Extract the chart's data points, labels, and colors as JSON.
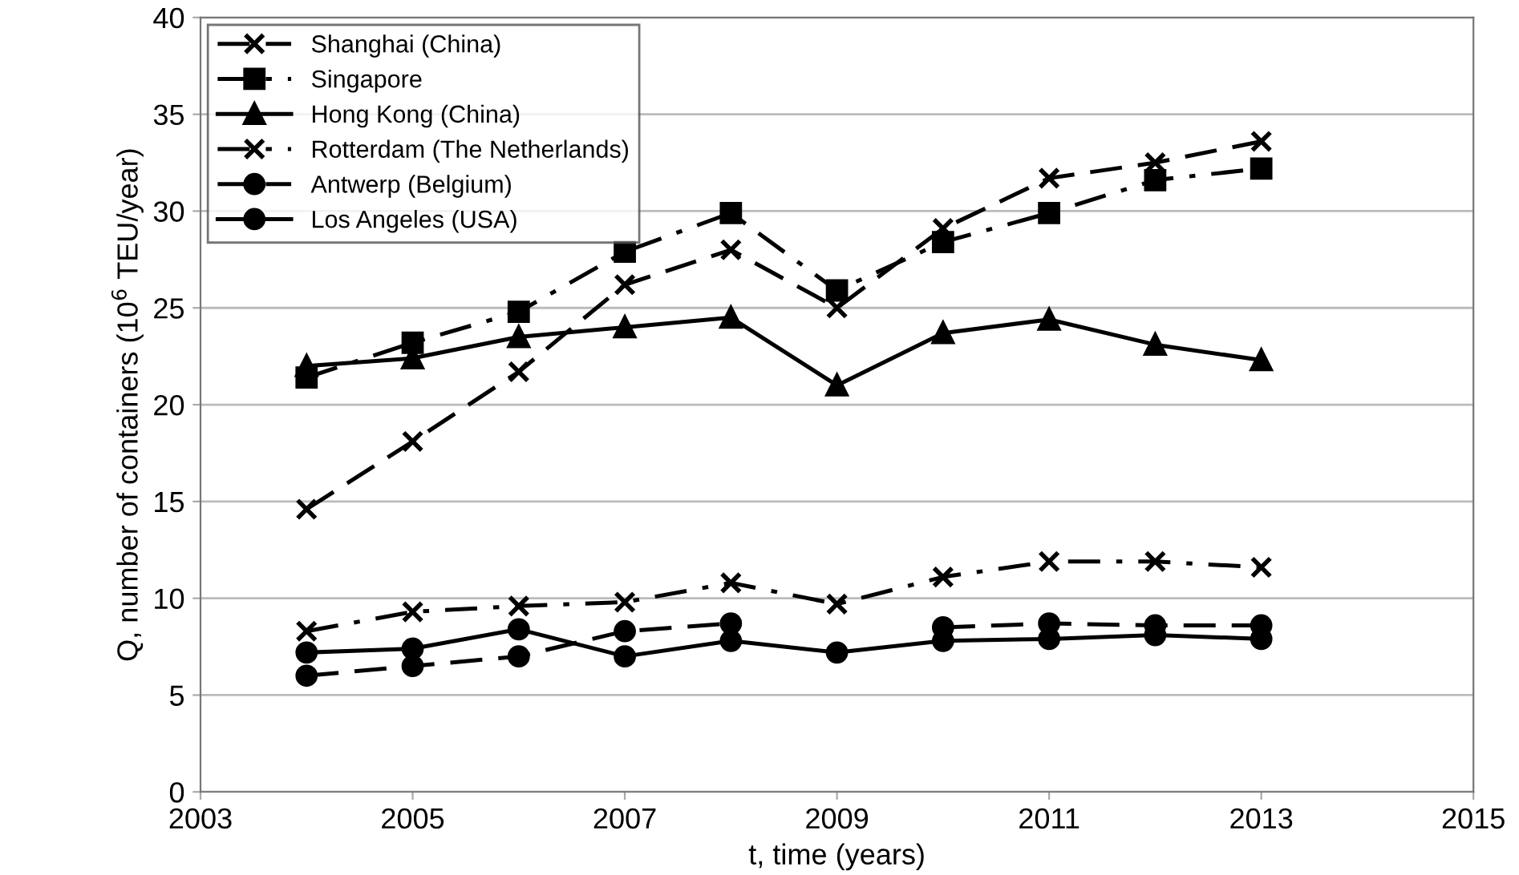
{
  "chart_data": {
    "type": "line",
    "xlabel": "t, time (years)",
    "ylabel": "Q, number of containers (10$^{6}$ TEU/year)",
    "x": [
      2004,
      2005,
      2006,
      2007,
      2008,
      2009,
      2010,
      2011,
      2012,
      2013
    ],
    "series": [
      {
        "name": "Shanghai (China)",
        "color": "#000000",
        "marker": "cross",
        "line_style": "dashed",
        "values": [
          14.6,
          18.1,
          21.7,
          26.2,
          28.0,
          25.0,
          29.1,
          31.7,
          32.5,
          33.6
        ]
      },
      {
        "name": "Singapore",
        "color": "#000000",
        "marker": "square",
        "line_style": "dashdot",
        "values": [
          21.4,
          23.2,
          24.8,
          27.9,
          29.9,
          25.9,
          28.4,
          29.9,
          31.6,
          32.2
        ]
      },
      {
        "name": "Hong Kong (China)",
        "color": "#000000",
        "marker": "triangle",
        "line_style": "solid",
        "values": [
          22.0,
          22.4,
          23.5,
          24.0,
          24.5,
          21.0,
          23.7,
          24.4,
          23.1,
          22.3
        ]
      },
      {
        "name": "Rotterdam (The Netherlands)",
        "color": "#000000",
        "marker": "cross",
        "line_style": "dashdot",
        "values": [
          8.3,
          9.3,
          9.6,
          9.8,
          10.8,
          9.7,
          11.1,
          11.9,
          11.9,
          11.6
        ]
      },
      {
        "name": "Antwerp (Belgium)",
        "color": "#000000",
        "marker": "circle",
        "line_style": "dashed",
        "values": [
          6.0,
          6.5,
          7.0,
          8.3,
          8.7,
          null,
          8.5,
          8.7,
          8.6,
          8.6
        ]
      },
      {
        "name": "Los Angeles (USA)",
        "color": "#000000",
        "marker": "circle",
        "line_style": "solid",
        "values": [
          7.2,
          7.4,
          8.4,
          7.0,
          7.8,
          7.2,
          7.8,
          7.9,
          8.1,
          7.9
        ]
      }
    ],
    "xlim": [
      2003,
      2015
    ],
    "xticks": [
      2003,
      2005,
      2007,
      2009,
      2011,
      2013,
      2015
    ],
    "ylim": [
      0,
      40
    ],
    "yticks": [
      0,
      5,
      10,
      15,
      20,
      25,
      30,
      35,
      40
    ],
    "grid": "y",
    "legend": "top left"
  }
}
